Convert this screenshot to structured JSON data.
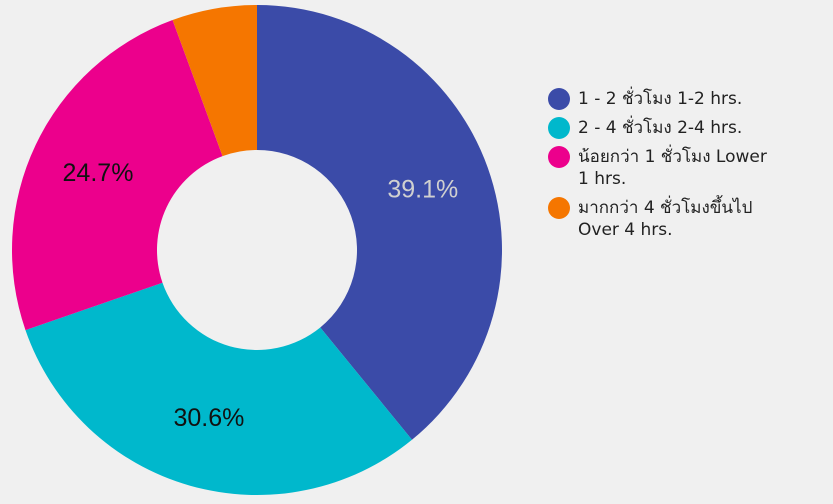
{
  "chart_data": {
    "type": "donut",
    "categories": [
      "1 - 2 ชั่วโมง  1-2 hrs.",
      "2 - 4 ชั่วโมง  2-4 hrs.",
      "น้อยกว่า 1 ชั่วโมง Lower 1 hrs.",
      "มากกว่า 4 ชั่วโมงขึ้นไป Over 4 hrs."
    ],
    "values": [
      39.1,
      30.6,
      24.7,
      5.6
    ],
    "value_labels": [
      "39.1%",
      "30.6%",
      "24.7%",
      null
    ],
    "colors": [
      "#3b4ba8",
      "#00b8cc",
      "#ec008c",
      "#f57600"
    ],
    "value_label_colors": [
      "#d0d0d0",
      "#111111",
      "#111111",
      "#111111"
    ],
    "legend": "right"
  }
}
